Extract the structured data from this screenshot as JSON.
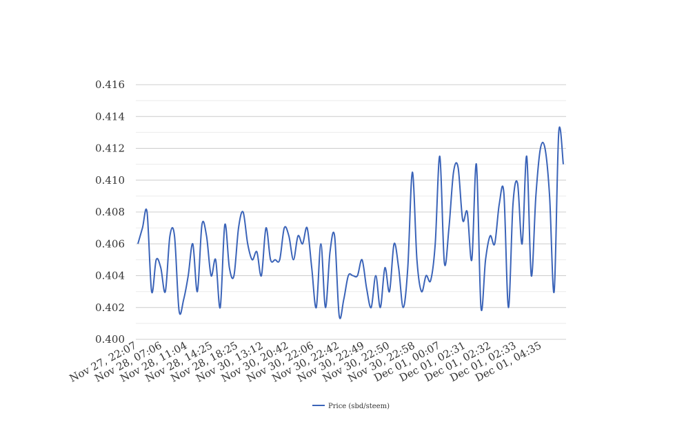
{
  "chart_data": {
    "type": "line",
    "title": "",
    "xlabel": "",
    "ylabel": "",
    "ylim": [
      0.4,
      0.416
    ],
    "yticks": [
      "0.400",
      "0.402",
      "0.404",
      "0.406",
      "0.408",
      "0.410",
      "0.412",
      "0.414",
      "0.416"
    ],
    "xticks": [
      "Nov 27, 22:07",
      "Nov 28, 07:06",
      "Nov 28, 11:04",
      "Nov 28, 14:25",
      "Nov 28, 18:25",
      "Nov 30, 13:12",
      "Nov 30, 20:42",
      "Nov 30, 22:06",
      "Nov 30, 22:42",
      "Nov 30, 22:49",
      "Nov 30, 22:50",
      "Nov 30, 22:58",
      "Dec 01, 00:07",
      "Dec 01, 02:31",
      "Dec 01, 02:32",
      "Dec 01, 02:33",
      "Dec 01, 04:35"
    ],
    "grid": true,
    "legend_position": "bottom",
    "series": [
      {
        "name": "Price (sbd/steem)",
        "color": "#3a63b8",
        "values": [
          0.406,
          0.407,
          0.408,
          0.403,
          0.405,
          0.4045,
          0.403,
          0.4065,
          0.4065,
          0.4018,
          0.4025,
          0.404,
          0.406,
          0.403,
          0.4072,
          0.4065,
          0.404,
          0.405,
          0.402,
          0.4072,
          0.4045,
          0.404,
          0.407,
          0.408,
          0.406,
          0.405,
          0.4055,
          0.404,
          0.407,
          0.405,
          0.405,
          0.405,
          0.407,
          0.4065,
          0.405,
          0.4065,
          0.406,
          0.407,
          0.4045,
          0.402,
          0.406,
          0.402,
          0.4055,
          0.4065,
          0.4015,
          0.4025,
          0.404,
          0.404,
          0.404,
          0.405,
          0.4032,
          0.402,
          0.404,
          0.402,
          0.4045,
          0.403,
          0.406,
          0.4045,
          0.402,
          0.4045,
          0.4105,
          0.405,
          0.403,
          0.404,
          0.4037,
          0.406,
          0.4115,
          0.4048,
          0.407,
          0.4105,
          0.4108,
          0.4075,
          0.408,
          0.405,
          0.411,
          0.402,
          0.405,
          0.4065,
          0.406,
          0.4085,
          0.4092,
          0.402,
          0.4085,
          0.4098,
          0.406,
          0.4115,
          0.404,
          0.409,
          0.412,
          0.412,
          0.409,
          0.403,
          0.413,
          0.411
        ]
      }
    ]
  }
}
